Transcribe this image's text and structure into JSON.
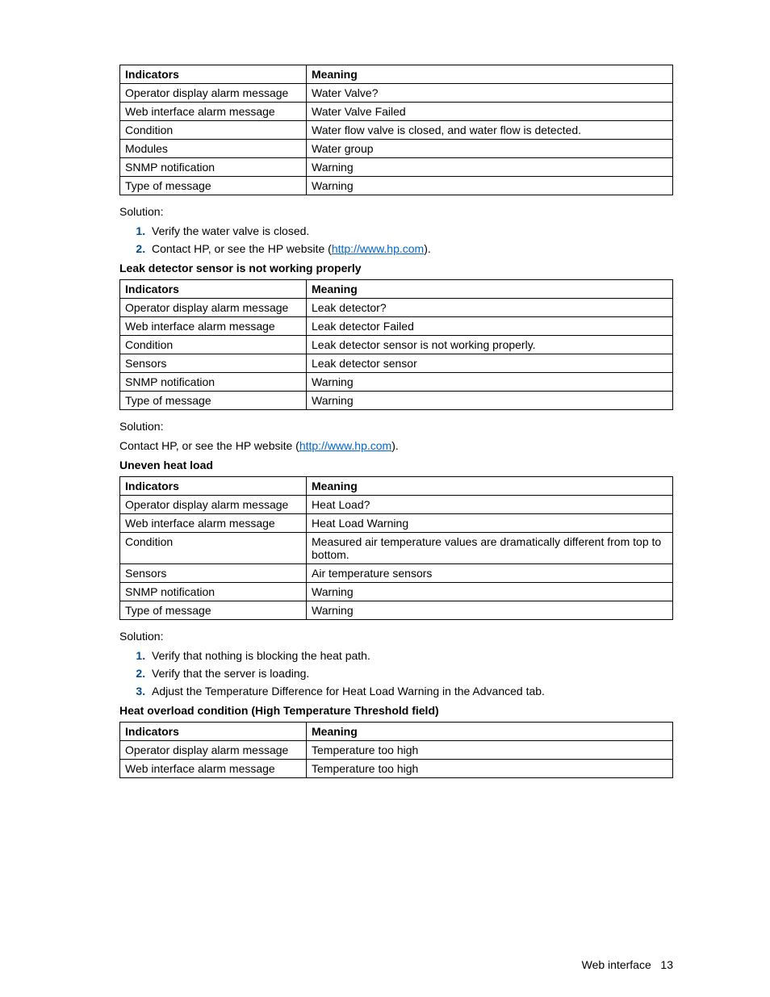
{
  "tables": {
    "t1": {
      "header": {
        "indicators": "Indicators",
        "meaning": "Meaning"
      },
      "rows": [
        {
          "ind": "Operator display alarm message",
          "mean": "Water Valve?"
        },
        {
          "ind": "Web interface alarm message",
          "mean": "Water Valve Failed"
        },
        {
          "ind": "Condition",
          "mean": "Water flow valve is closed, and water flow is detected."
        },
        {
          "ind": "Modules",
          "mean": "Water group"
        },
        {
          "ind": "SNMP notification",
          "mean": "Warning"
        },
        {
          "ind": "Type of message",
          "mean": "Warning"
        }
      ]
    },
    "t2": {
      "header": {
        "indicators": "Indicators",
        "meaning": "Meaning"
      },
      "rows": [
        {
          "ind": "Operator display alarm message",
          "mean": "Leak detector?"
        },
        {
          "ind": "Web interface alarm message",
          "mean": "Leak detector Failed"
        },
        {
          "ind": "Condition",
          "mean": "Leak detector sensor is not working properly."
        },
        {
          "ind": "Sensors",
          "mean": "Leak detector sensor"
        },
        {
          "ind": "SNMP notification",
          "mean": "Warning"
        },
        {
          "ind": "Type of message",
          "mean": "Warning"
        }
      ]
    },
    "t3": {
      "header": {
        "indicators": "Indicators",
        "meaning": "Meaning"
      },
      "rows": [
        {
          "ind": "Operator display alarm message",
          "mean": "Heat Load?"
        },
        {
          "ind": "Web interface alarm message",
          "mean": "Heat Load Warning"
        },
        {
          "ind": "Condition",
          "mean": "Measured air temperature values are dramatically different from top to bottom."
        },
        {
          "ind": "Sensors",
          "mean": "Air temperature sensors"
        },
        {
          "ind": "SNMP notification",
          "mean": "Warning"
        },
        {
          "ind": "Type of message",
          "mean": "Warning"
        }
      ]
    },
    "t4": {
      "header": {
        "indicators": "Indicators",
        "meaning": "Meaning"
      },
      "rows": [
        {
          "ind": "Operator display alarm message",
          "mean": "Temperature too high"
        },
        {
          "ind": "Web interface alarm message",
          "mean": "Temperature too high"
        }
      ]
    }
  },
  "sections": {
    "s1": {
      "solution_label": "Solution:",
      "list": [
        "Verify the water valve is closed.",
        "Contact HP, or see the HP website ("
      ],
      "link": "http://www.hp.com",
      "link_tail": ")."
    },
    "h1": "Leak detector sensor is not working properly",
    "s2": {
      "solution_label": "Solution:",
      "para_pre": "Contact HP, or see the HP website (",
      "link": "http://www.hp.com",
      "para_post": ")."
    },
    "h2": "Uneven heat load",
    "s3": {
      "solution_label": "Solution:",
      "list": [
        "Verify that nothing is blocking the heat path.",
        "Verify that the server is loading.",
        "Adjust the Temperature Difference for Heat Load Warning in the Advanced tab."
      ]
    },
    "h3": "Heat overload condition (High Temperature Threshold field)"
  },
  "footer": {
    "label": "Web interface",
    "page": "13"
  },
  "colors": {
    "link": "#0066cc",
    "marker": "#004b8d"
  }
}
